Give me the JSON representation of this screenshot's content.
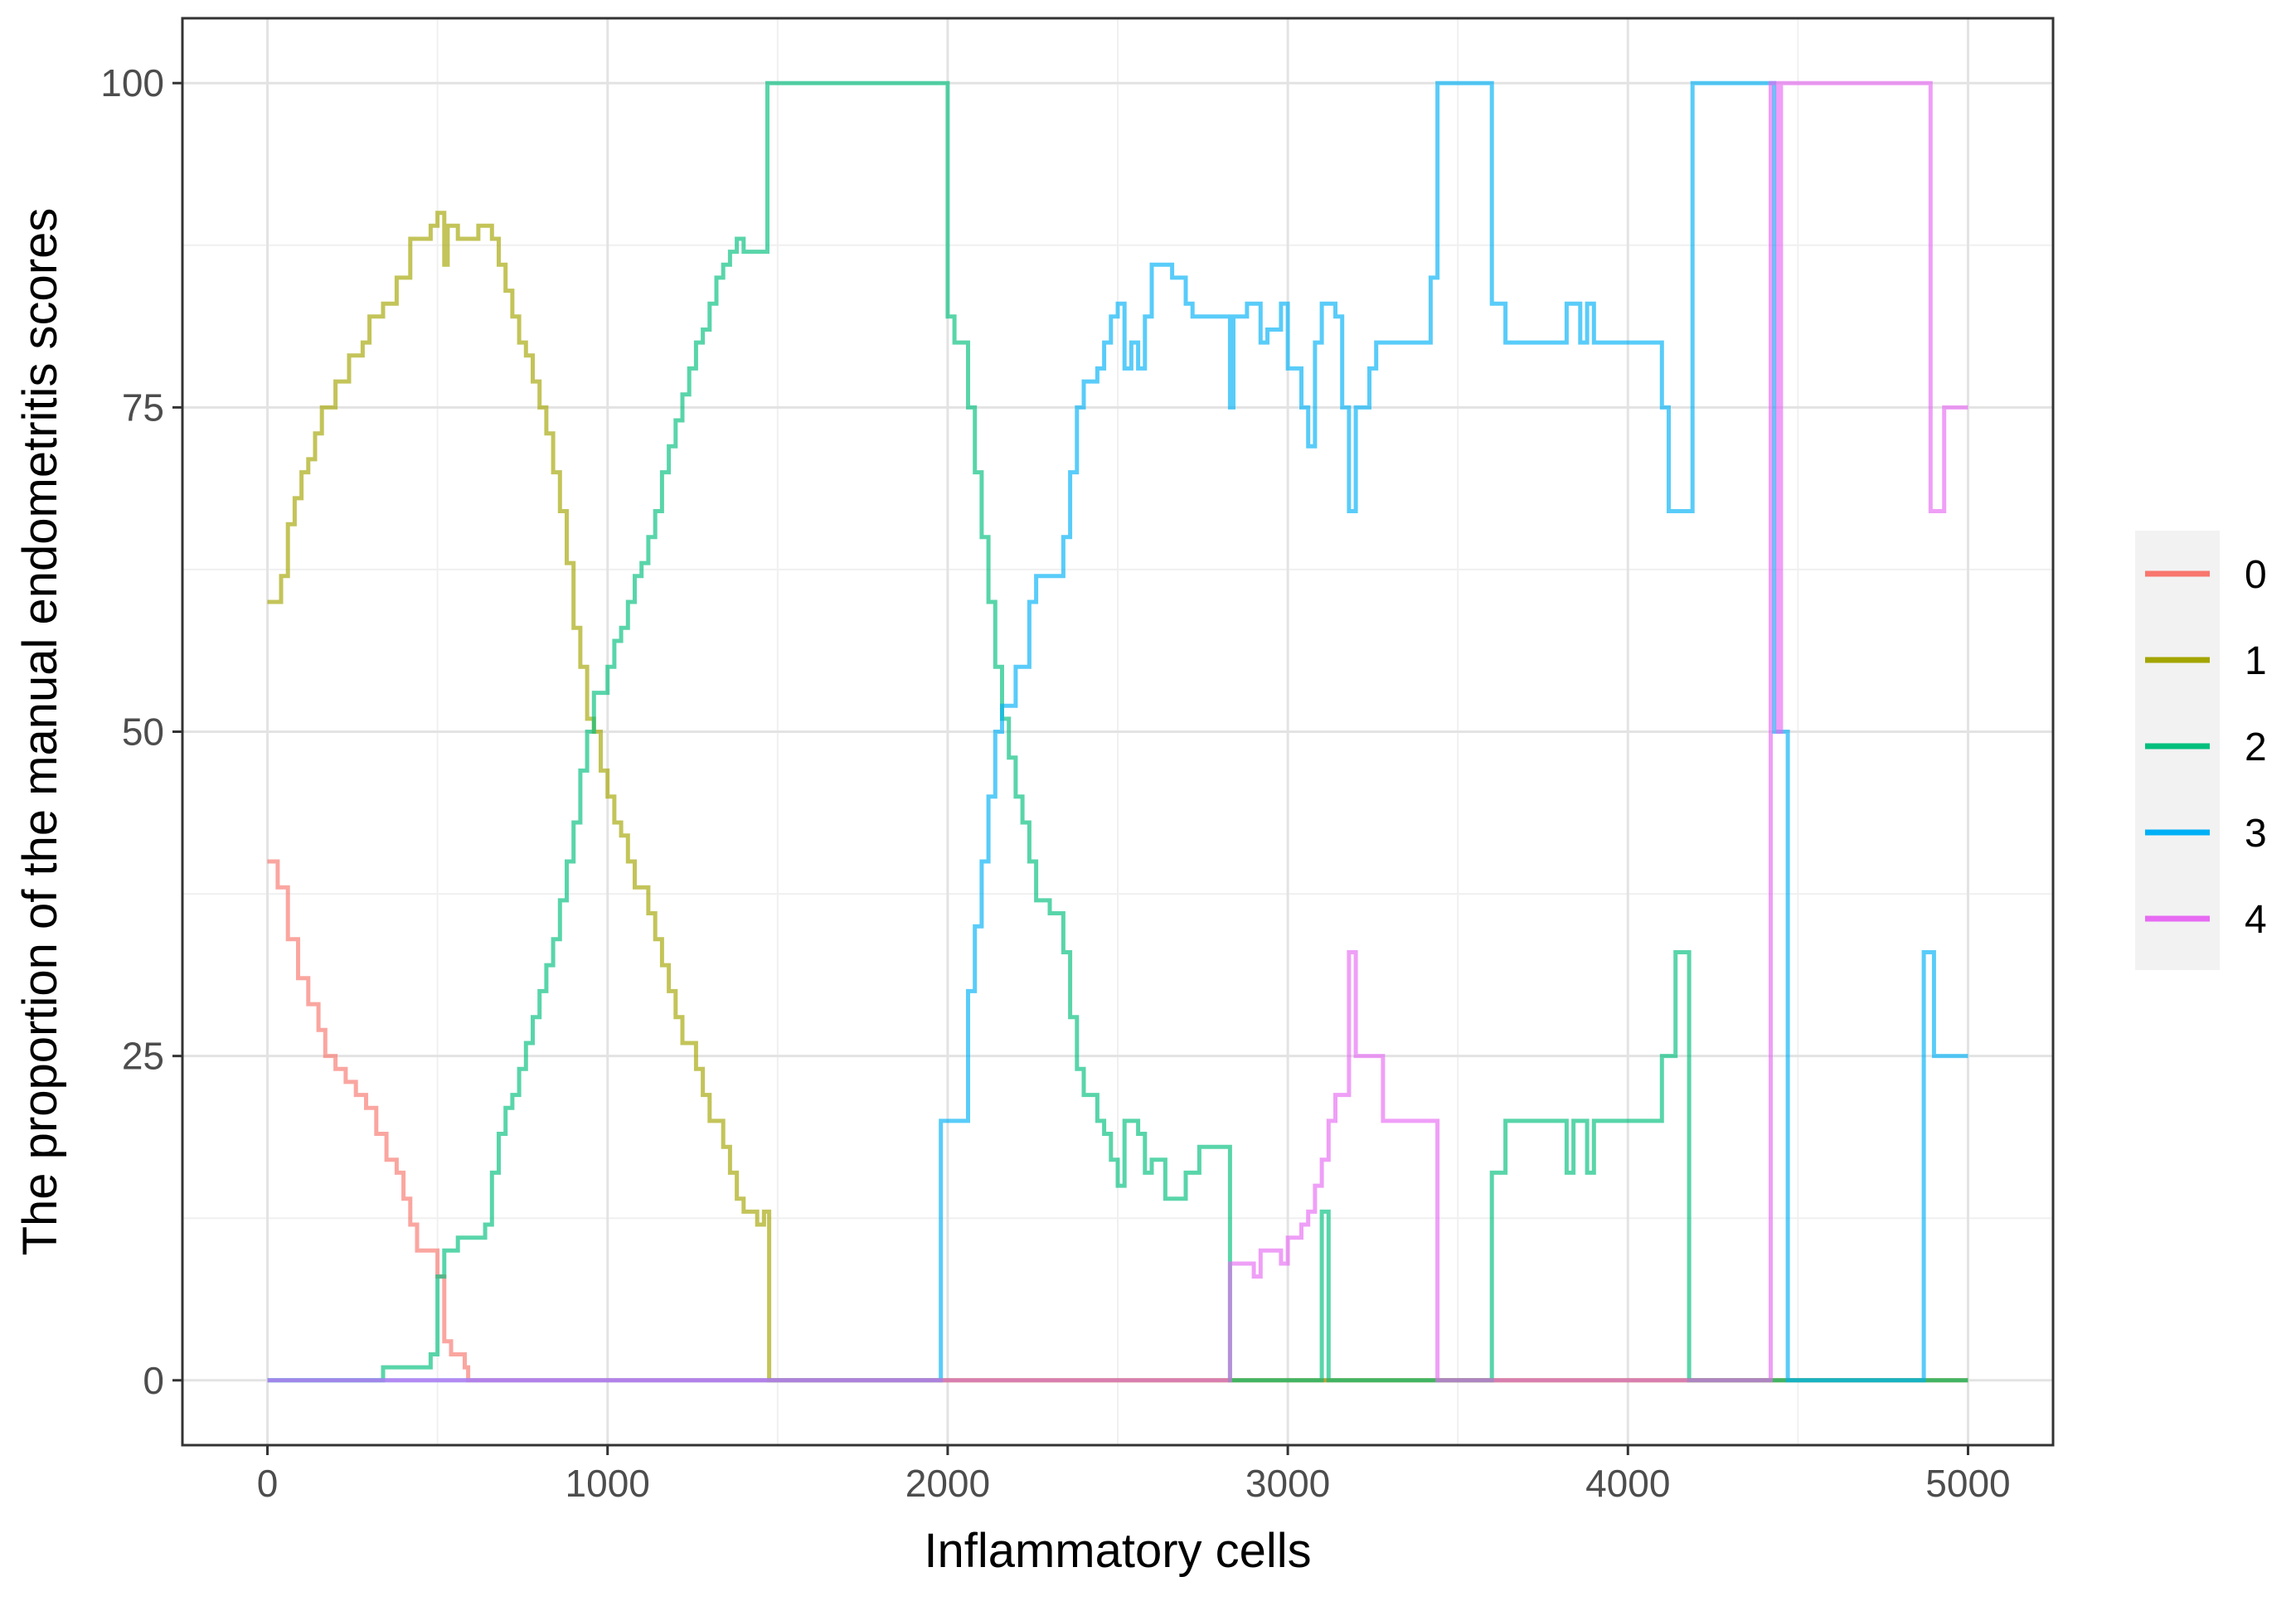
{
  "chart_data": {
    "type": "line",
    "xlabel": "Inflammatory cells",
    "ylabel": "The proportion of the manual endometritis scores",
    "xlim": [
      -250,
      5250
    ],
    "ylim": [
      -5,
      105
    ],
    "xticks": [
      0,
      1000,
      2000,
      3000,
      4000,
      5000
    ],
    "xtick_labels": [
      "0",
      "1000",
      "2000",
      "3000",
      "4000",
      "5000"
    ],
    "yticks": [
      0,
      25,
      50,
      75,
      100
    ],
    "ytick_labels": [
      "0",
      "25",
      "50",
      "75",
      "100"
    ],
    "grid": true,
    "legend_position": "right",
    "step": true,
    "series": [
      {
        "name": "0",
        "color": "#F8766D",
        "points": [
          [
            0,
            40
          ],
          [
            20,
            40
          ],
          [
            30,
            38
          ],
          [
            60,
            34
          ],
          [
            90,
            31
          ],
          [
            120,
            29
          ],
          [
            150,
            27
          ],
          [
            170,
            25
          ],
          [
            200,
            24
          ],
          [
            230,
            23
          ],
          [
            260,
            22
          ],
          [
            290,
            21
          ],
          [
            320,
            19
          ],
          [
            350,
            17
          ],
          [
            380,
            16
          ],
          [
            400,
            14
          ],
          [
            420,
            12
          ],
          [
            440,
            10
          ],
          [
            480,
            10
          ],
          [
            500,
            8
          ],
          [
            520,
            3
          ],
          [
            540,
            2
          ],
          [
            560,
            2
          ],
          [
            580,
            1
          ],
          [
            590,
            0
          ],
          [
            5000,
            0
          ]
        ]
      },
      {
        "name": "1",
        "color": "#A3A500",
        "points": [
          [
            0,
            60
          ],
          [
            40,
            62
          ],
          [
            60,
            66
          ],
          [
            80,
            68
          ],
          [
            100,
            70
          ],
          [
            120,
            71
          ],
          [
            140,
            73
          ],
          [
            160,
            75
          ],
          [
            200,
            77
          ],
          [
            240,
            79
          ],
          [
            280,
            80
          ],
          [
            300,
            82
          ],
          [
            340,
            83
          ],
          [
            380,
            85
          ],
          [
            420,
            88
          ],
          [
            460,
            88
          ],
          [
            480,
            89
          ],
          [
            500,
            90
          ],
          [
            520,
            86
          ],
          [
            530,
            89
          ],
          [
            560,
            88
          ],
          [
            600,
            88
          ],
          [
            620,
            89
          ],
          [
            660,
            88
          ],
          [
            680,
            86
          ],
          [
            700,
            84
          ],
          [
            720,
            82
          ],
          [
            740,
            80
          ],
          [
            760,
            79
          ],
          [
            780,
            77
          ],
          [
            800,
            75
          ],
          [
            820,
            73
          ],
          [
            840,
            70
          ],
          [
            860,
            67
          ],
          [
            880,
            63
          ],
          [
            900,
            58
          ],
          [
            920,
            55
          ],
          [
            940,
            51
          ],
          [
            960,
            50
          ],
          [
            980,
            47
          ],
          [
            1000,
            45
          ],
          [
            1020,
            43
          ],
          [
            1040,
            42
          ],
          [
            1060,
            40
          ],
          [
            1080,
            38
          ],
          [
            1100,
            38
          ],
          [
            1120,
            36
          ],
          [
            1140,
            34
          ],
          [
            1160,
            32
          ],
          [
            1180,
            30
          ],
          [
            1200,
            28
          ],
          [
            1220,
            26
          ],
          [
            1260,
            24
          ],
          [
            1280,
            22
          ],
          [
            1300,
            20
          ],
          [
            1340,
            18
          ],
          [
            1360,
            16
          ],
          [
            1380,
            14
          ],
          [
            1400,
            13
          ],
          [
            1440,
            12
          ],
          [
            1460,
            13
          ],
          [
            1475,
            0
          ],
          [
            5000,
            0
          ]
        ]
      },
      {
        "name": "2",
        "color": "#00BF7D",
        "points": [
          [
            0,
            0
          ],
          [
            330,
            0
          ],
          [
            340,
            1
          ],
          [
            460,
            1
          ],
          [
            480,
            2
          ],
          [
            500,
            8
          ],
          [
            520,
            10
          ],
          [
            560,
            11
          ],
          [
            600,
            11
          ],
          [
            640,
            12
          ],
          [
            660,
            16
          ],
          [
            680,
            19
          ],
          [
            700,
            21
          ],
          [
            720,
            22
          ],
          [
            740,
            24
          ],
          [
            760,
            26
          ],
          [
            780,
            28
          ],
          [
            800,
            30
          ],
          [
            820,
            32
          ],
          [
            840,
            34
          ],
          [
            860,
            37
          ],
          [
            880,
            40
          ],
          [
            900,
            43
          ],
          [
            920,
            47
          ],
          [
            940,
            50
          ],
          [
            960,
            53
          ],
          [
            1000,
            55
          ],
          [
            1020,
            57
          ],
          [
            1040,
            58
          ],
          [
            1060,
            60
          ],
          [
            1080,
            62
          ],
          [
            1100,
            63
          ],
          [
            1120,
            65
          ],
          [
            1140,
            67
          ],
          [
            1160,
            70
          ],
          [
            1180,
            72
          ],
          [
            1200,
            74
          ],
          [
            1220,
            76
          ],
          [
            1240,
            78
          ],
          [
            1260,
            80
          ],
          [
            1280,
            81
          ],
          [
            1300,
            83
          ],
          [
            1320,
            85
          ],
          [
            1340,
            86
          ],
          [
            1360,
            87
          ],
          [
            1380,
            88
          ],
          [
            1400,
            87
          ],
          [
            1460,
            87
          ],
          [
            1470,
            100
          ],
          [
            1980,
            100
          ],
          [
            2000,
            82
          ],
          [
            2020,
            80
          ],
          [
            2060,
            75
          ],
          [
            2080,
            70
          ],
          [
            2100,
            65
          ],
          [
            2120,
            60
          ],
          [
            2140,
            55
          ],
          [
            2160,
            51
          ],
          [
            2180,
            48
          ],
          [
            2200,
            45
          ],
          [
            2220,
            43
          ],
          [
            2240,
            40
          ],
          [
            2260,
            37
          ],
          [
            2300,
            36
          ],
          [
            2340,
            33
          ],
          [
            2360,
            28
          ],
          [
            2380,
            24
          ],
          [
            2400,
            22
          ],
          [
            2440,
            20
          ],
          [
            2460,
            19
          ],
          [
            2480,
            17
          ],
          [
            2500,
            15
          ],
          [
            2520,
            20
          ],
          [
            2560,
            19
          ],
          [
            2580,
            16
          ],
          [
            2600,
            17
          ],
          [
            2640,
            14
          ],
          [
            2700,
            16
          ],
          [
            2740,
            18
          ],
          [
            2800,
            18
          ],
          [
            2830,
            0
          ],
          [
            3080,
            0
          ],
          [
            3100,
            13
          ],
          [
            3120,
            0
          ],
          [
            3580,
            0
          ],
          [
            3600,
            16
          ],
          [
            3640,
            20
          ],
          [
            3800,
            20
          ],
          [
            3820,
            16
          ],
          [
            3840,
            20
          ],
          [
            3880,
            16
          ],
          [
            3900,
            20
          ],
          [
            4080,
            20
          ],
          [
            4100,
            25
          ],
          [
            4140,
            33
          ],
          [
            4180,
            0
          ],
          [
            5000,
            0
          ]
        ]
      },
      {
        "name": "3",
        "color": "#00B0F6",
        "points": [
          [
            0,
            0
          ],
          [
            1960,
            0
          ],
          [
            1980,
            20
          ],
          [
            2040,
            20
          ],
          [
            2060,
            30
          ],
          [
            2080,
            35
          ],
          [
            2100,
            40
          ],
          [
            2120,
            45
          ],
          [
            2140,
            50
          ],
          [
            2160,
            52
          ],
          [
            2200,
            55
          ],
          [
            2240,
            60
          ],
          [
            2260,
            62
          ],
          [
            2320,
            62
          ],
          [
            2340,
            65
          ],
          [
            2360,
            70
          ],
          [
            2380,
            75
          ],
          [
            2400,
            77
          ],
          [
            2440,
            78
          ],
          [
            2460,
            80
          ],
          [
            2480,
            82
          ],
          [
            2500,
            83
          ],
          [
            2520,
            78
          ],
          [
            2540,
            80
          ],
          [
            2560,
            78
          ],
          [
            2580,
            82
          ],
          [
            2600,
            86
          ],
          [
            2660,
            85
          ],
          [
            2700,
            83
          ],
          [
            2720,
            82
          ],
          [
            2820,
            82
          ],
          [
            2830,
            75
          ],
          [
            2840,
            82
          ],
          [
            2880,
            83
          ],
          [
            2920,
            80
          ],
          [
            2940,
            81
          ],
          [
            2980,
            83
          ],
          [
            3000,
            78
          ],
          [
            3040,
            75
          ],
          [
            3060,
            72
          ],
          [
            3080,
            80
          ],
          [
            3100,
            83
          ],
          [
            3140,
            82
          ],
          [
            3160,
            75
          ],
          [
            3180,
            67
          ],
          [
            3200,
            75
          ],
          [
            3240,
            78
          ],
          [
            3260,
            80
          ],
          [
            3400,
            80
          ],
          [
            3420,
            85
          ],
          [
            3440,
            100
          ],
          [
            3580,
            100
          ],
          [
            3600,
            83
          ],
          [
            3640,
            80
          ],
          [
            3800,
            80
          ],
          [
            3820,
            83
          ],
          [
            3860,
            80
          ],
          [
            3880,
            83
          ],
          [
            3900,
            80
          ],
          [
            4080,
            80
          ],
          [
            4100,
            75
          ],
          [
            4120,
            67
          ],
          [
            4180,
            67
          ],
          [
            4190,
            100
          ],
          [
            4420,
            100
          ],
          [
            4430,
            50
          ],
          [
            4460,
            50
          ],
          [
            4470,
            0
          ],
          [
            4860,
            0
          ],
          [
            4870,
            33
          ],
          [
            4900,
            25
          ],
          [
            5000,
            25
          ]
        ]
      },
      {
        "name": "4",
        "color": "#E76BF3",
        "points": [
          [
            0,
            0
          ],
          [
            2820,
            0
          ],
          [
            2830,
            9
          ],
          [
            2880,
            9
          ],
          [
            2900,
            8
          ],
          [
            2920,
            10
          ],
          [
            2960,
            10
          ],
          [
            2980,
            9
          ],
          [
            3000,
            11
          ],
          [
            3040,
            12
          ],
          [
            3060,
            13
          ],
          [
            3080,
            15
          ],
          [
            3100,
            17
          ],
          [
            3120,
            20
          ],
          [
            3140,
            22
          ],
          [
            3180,
            33
          ],
          [
            3200,
            25
          ],
          [
            3260,
            25
          ],
          [
            3280,
            20
          ],
          [
            3420,
            20
          ],
          [
            3440,
            0
          ],
          [
            4400,
            0
          ],
          [
            4420,
            100
          ],
          [
            4440,
            50
          ],
          [
            4450,
            100
          ],
          [
            4880,
            100
          ],
          [
            4890,
            67
          ],
          [
            4920,
            67
          ],
          [
            4930,
            75
          ],
          [
            5000,
            75
          ]
        ]
      }
    ]
  }
}
